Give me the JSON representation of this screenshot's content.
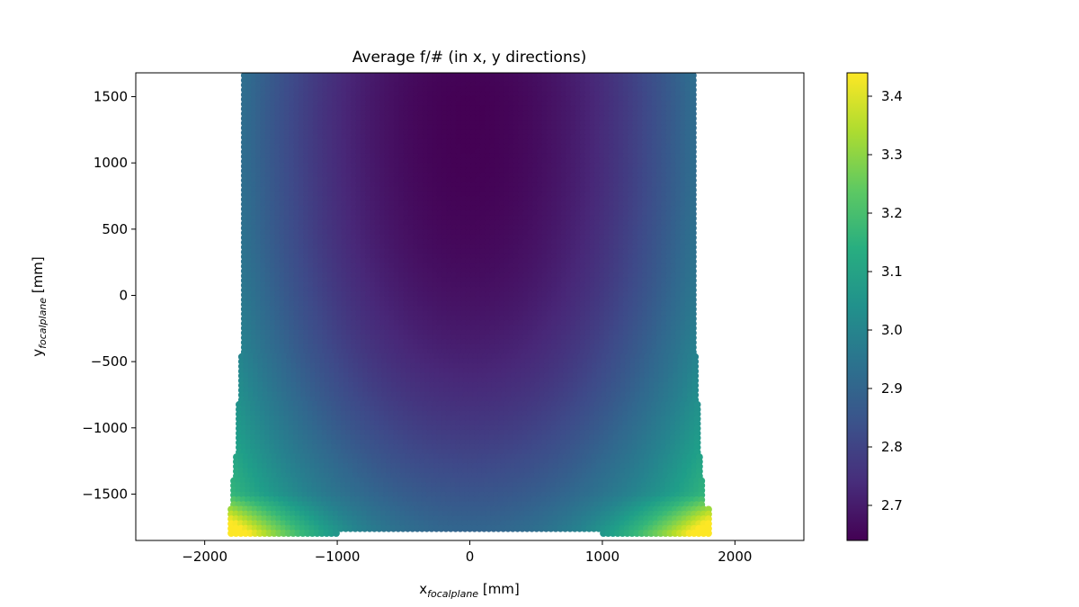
{
  "chart_data": {
    "type": "scatter",
    "title": "Average f/# (in x, y directions)",
    "xlabel": {
      "base": "x",
      "sub": "focalplane",
      "unit": " [mm]"
    },
    "ylabel": {
      "base": "y",
      "sub": "focalplane",
      "unit": " [mm]"
    },
    "xlim": [
      -2520,
      2520
    ],
    "ylim": [
      -1850,
      1680
    ],
    "x_ticks": [
      {
        "value": -2000,
        "label": "−2000"
      },
      {
        "value": -1000,
        "label": "−1000"
      },
      {
        "value": 0,
        "label": "0"
      },
      {
        "value": 1000,
        "label": "1000"
      },
      {
        "value": 2000,
        "label": "2000"
      }
    ],
    "y_ticks": [
      {
        "value": 1500,
        "label": "1500"
      },
      {
        "value": 1000,
        "label": "1000"
      },
      {
        "value": 500,
        "label": "500"
      },
      {
        "value": 0,
        "label": "0"
      },
      {
        "value": -500,
        "label": "−500"
      },
      {
        "value": -1000,
        "label": "−1000"
      },
      {
        "value": -1500,
        "label": "−1500"
      }
    ],
    "grid": false,
    "colormap": "viridis",
    "colorbar": {
      "range": [
        2.64,
        3.44
      ],
      "ticks": [
        {
          "value": 2.7,
          "label": "2.7"
        },
        {
          "value": 2.8,
          "label": "2.8"
        },
        {
          "value": 2.9,
          "label": "2.9"
        },
        {
          "value": 3.0,
          "label": "3.0"
        },
        {
          "value": 3.1,
          "label": "3.1"
        },
        {
          "value": 3.2,
          "label": "3.2"
        },
        {
          "value": 3.3,
          "label": "3.3"
        },
        {
          "value": 3.4,
          "label": "3.4"
        }
      ]
    },
    "field": {
      "x_extent": [
        -1750,
        1750
      ],
      "y_extent": [
        -1830,
        1660
      ],
      "center": [
        0,
        1380
      ],
      "min_value": 2.64,
      "max_value": 3.44
    }
  }
}
